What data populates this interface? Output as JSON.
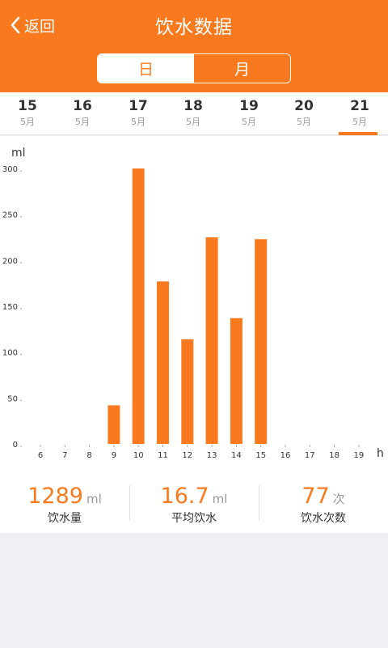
{
  "header": {
    "back_label": "返回",
    "title": "饮水数据",
    "tabs": [
      {
        "label": "日",
        "active": true
      },
      {
        "label": "月",
        "active": false
      }
    ],
    "color": "#f97a1e"
  },
  "dates": [
    {
      "day": "15",
      "month": "5月"
    },
    {
      "day": "16",
      "month": "5月"
    },
    {
      "day": "17",
      "month": "5月"
    },
    {
      "day": "18",
      "month": "5月"
    },
    {
      "day": "19",
      "month": "5月"
    },
    {
      "day": "20",
      "month": "5月"
    },
    {
      "day": "21",
      "month": "5月",
      "selected": true
    }
  ],
  "chart_data": {
    "type": "bar",
    "ylabel": "ml",
    "xlabel": "h",
    "ylim": [
      0,
      300
    ],
    "yticks": [
      0,
      50,
      100,
      150,
      200,
      250,
      300
    ],
    "categories": [
      "6",
      "7",
      "8",
      "9",
      "10",
      "11",
      "12",
      "13",
      "14",
      "15",
      "16",
      "17",
      "18",
      "19"
    ],
    "values": [
      0,
      0,
      0,
      42,
      300,
      177,
      114,
      225,
      137,
      223,
      0,
      0,
      0,
      0
    ],
    "bar_color": "#f97a1e",
    "grid": false
  },
  "stats": [
    {
      "value": "1289",
      "unit": "ml",
      "label": "饮水量"
    },
    {
      "value": "16.7",
      "unit": "ml",
      "label": "平均饮水"
    },
    {
      "value": "77",
      "unit": "次",
      "label": "饮水次数"
    }
  ]
}
